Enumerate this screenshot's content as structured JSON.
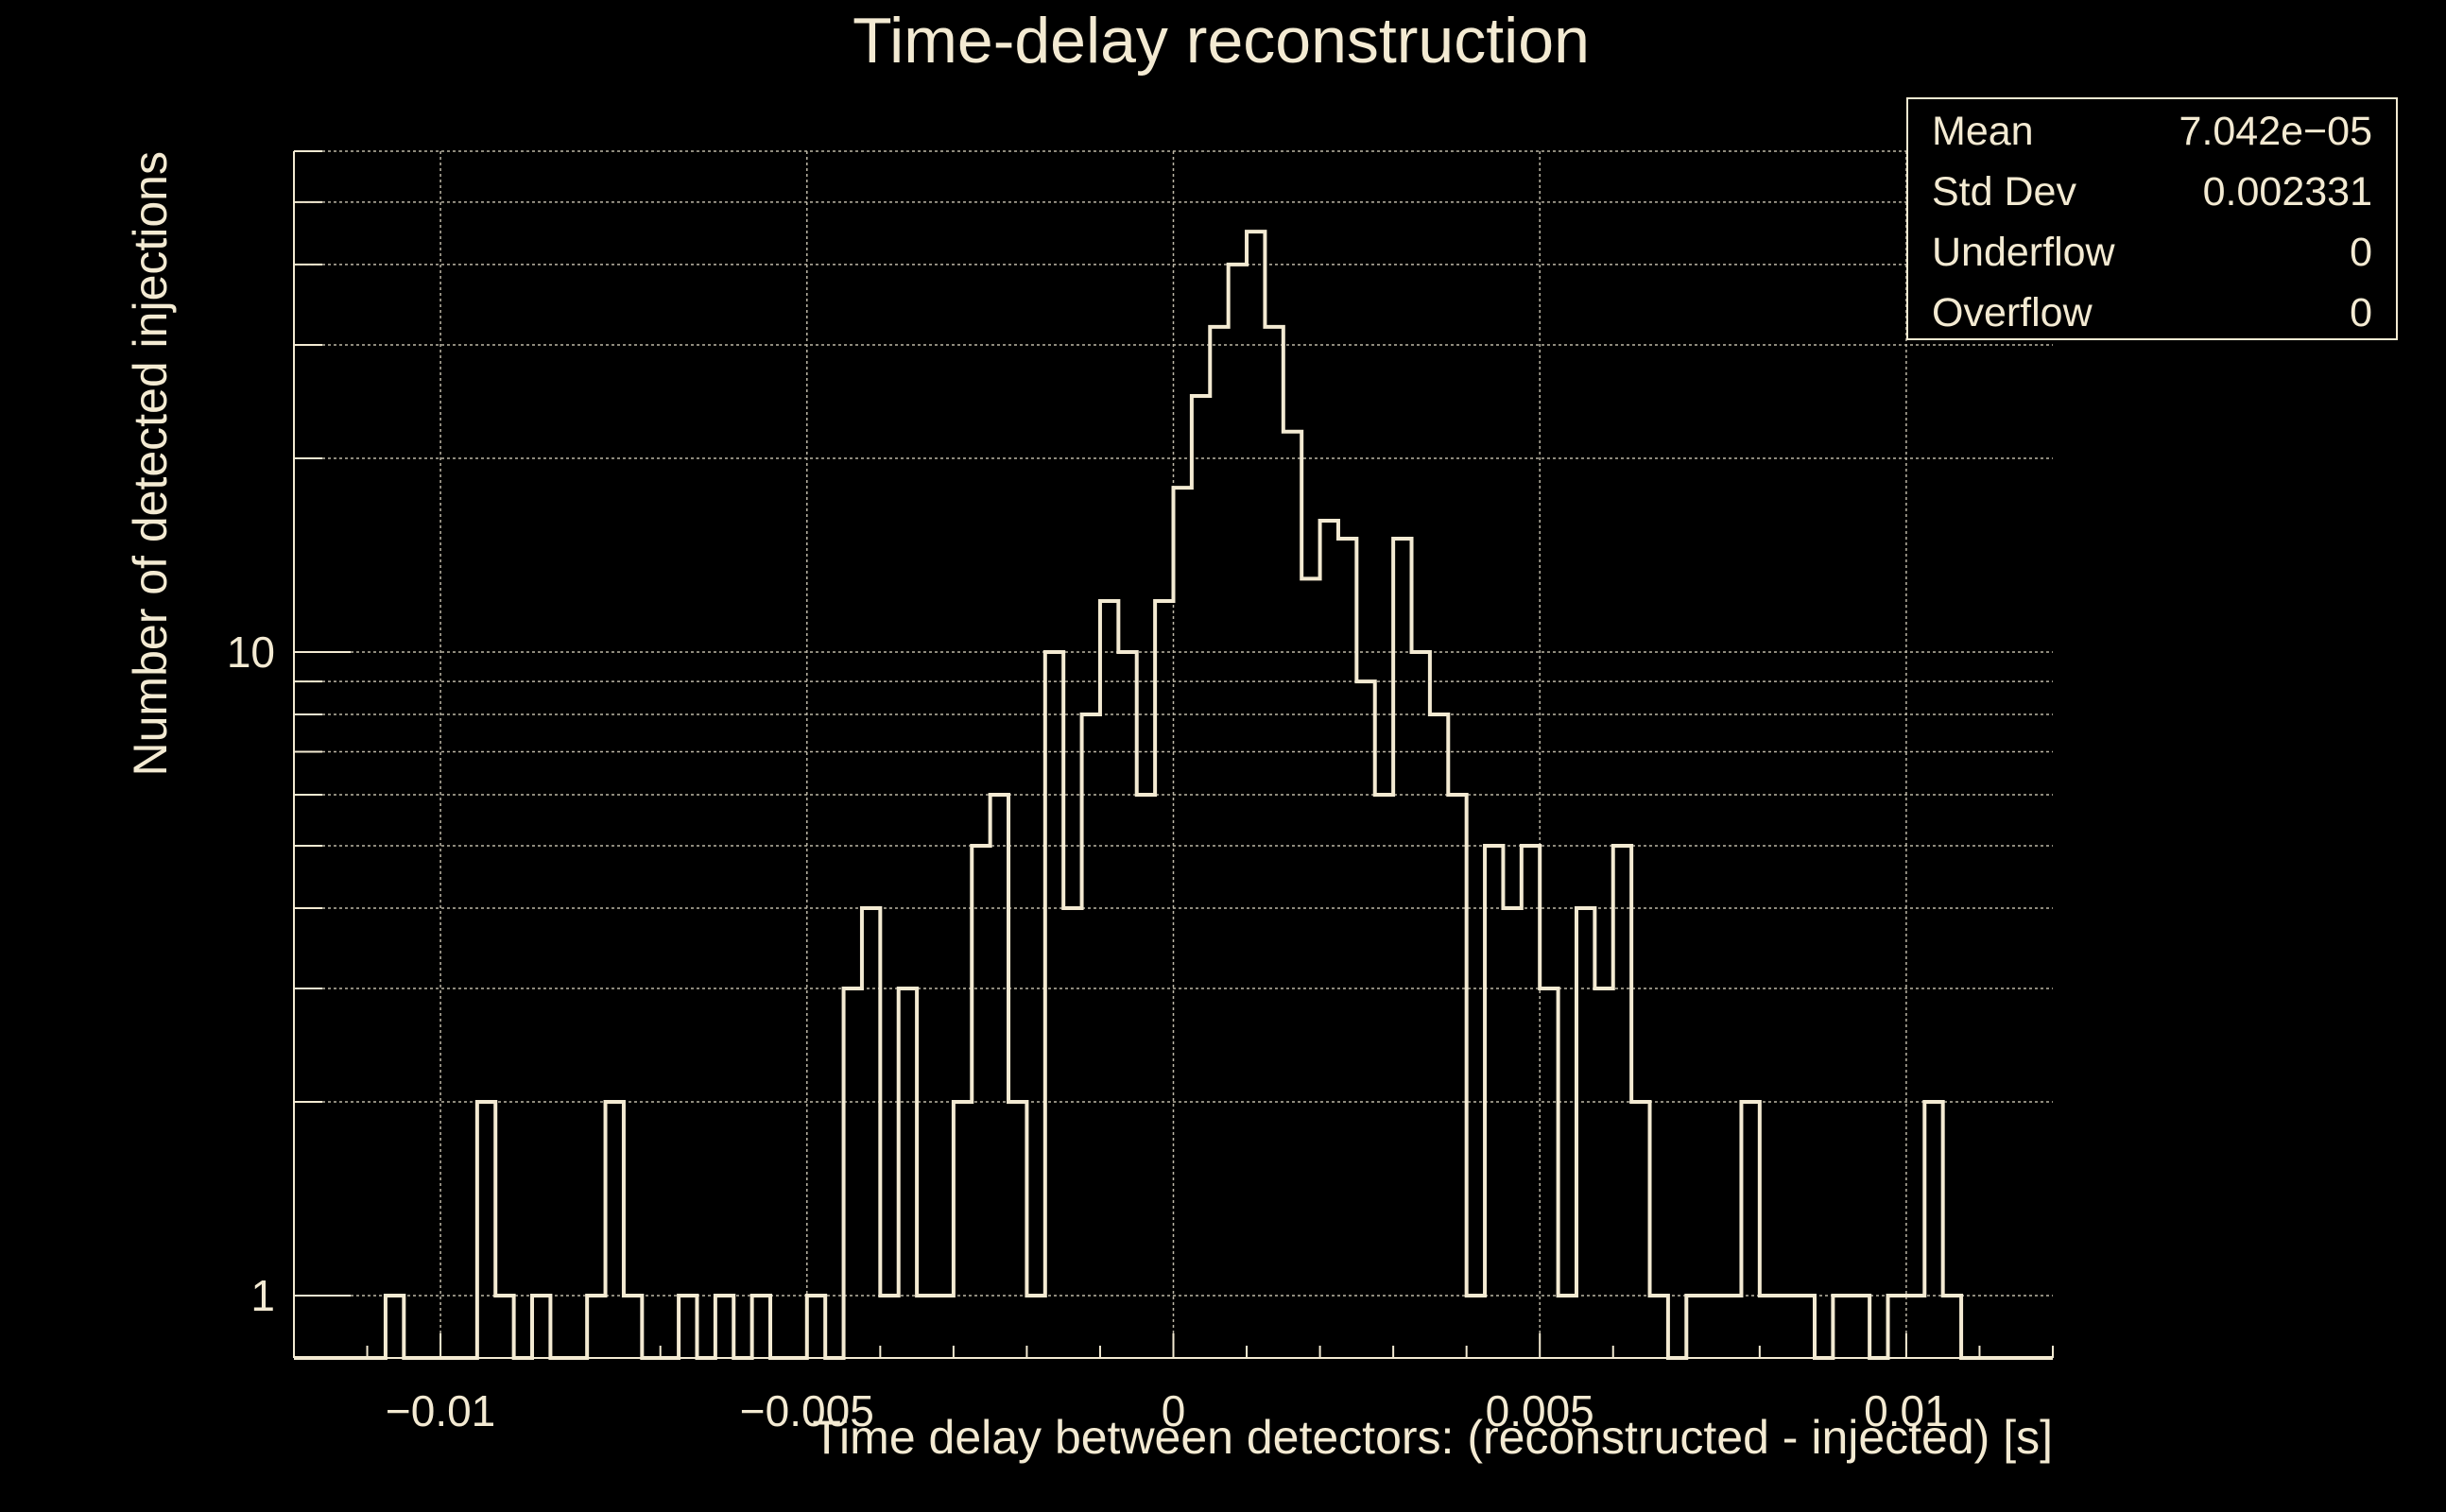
{
  "colors": {
    "background": "#000000",
    "foreground": "#f3ead2",
    "grid": "#bdb7a6"
  },
  "chart_data": {
    "type": "histogram",
    "title": "Time-delay reconstruction",
    "xlabel": "Time delay between detectors: (reconstructed - injected) [s]",
    "ylabel": "Number of detected injections",
    "x_tick_labels": [
      "−0.01",
      "−0.005",
      "0",
      "0.005",
      "0.01"
    ],
    "x_ticks": [
      -0.01,
      -0.005,
      0,
      0.005,
      0.01
    ],
    "y_tick_labels": [
      "1",
      "10"
    ],
    "y_ticks": [
      1,
      10
    ],
    "y_scale": "log",
    "xlim": [
      -0.012,
      0.012
    ],
    "ylim": [
      0.8,
      60
    ],
    "grid": true,
    "bin_width": 0.00025,
    "bin_start": -0.01075,
    "counts": [
      1,
      0,
      0,
      0,
      0,
      2,
      1,
      0,
      1,
      0,
      0,
      1,
      2,
      1,
      0,
      0,
      1,
      0,
      1,
      0,
      1,
      0,
      0,
      1,
      0,
      3,
      4,
      1,
      3,
      1,
      1,
      2,
      5,
      6,
      2,
      1,
      10,
      4,
      8,
      12,
      10,
      6,
      12,
      18,
      25,
      32,
      40,
      45,
      32,
      22,
      13,
      16,
      15,
      9,
      6,
      15,
      10,
      8,
      6,
      1,
      5,
      4,
      5,
      3,
      1,
      4,
      3,
      5,
      2,
      1,
      0,
      1,
      1,
      1,
      2,
      1,
      1,
      1,
      0,
      1,
      1,
      0,
      1,
      1,
      2,
      1
    ],
    "stats_box": {
      "rows": [
        {
          "label": "Mean",
          "value": "7.042e−05"
        },
        {
          "label": "Std Dev",
          "value": "0.002331"
        },
        {
          "label": "Underflow",
          "value": "0"
        },
        {
          "label": "Overflow",
          "value": "0"
        }
      ],
      "placement": "top-right"
    }
  }
}
